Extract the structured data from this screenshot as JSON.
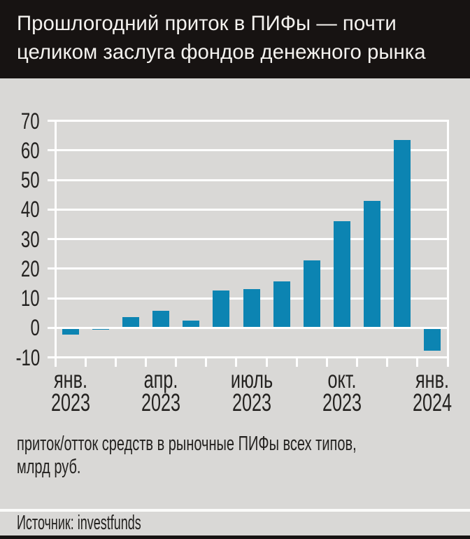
{
  "header": {
    "title_lines": [
      "Прошлогодний приток в ПИФы — почти",
      "целиком заслуга фондов денежного рынка"
    ]
  },
  "chart_data": {
    "type": "bar",
    "n_bars": 13,
    "values": [
      -2.4,
      -0.3,
      3.6,
      5.7,
      2.5,
      12.7,
      13.0,
      15.6,
      22.8,
      36.1,
      43.0,
      63.6,
      -7.8
    ],
    "x_tick_labels": [
      {
        "index": 0,
        "month": "янв.",
        "year": "2023"
      },
      {
        "index": 3,
        "month": "апр.",
        "year": "2023"
      },
      {
        "index": 6,
        "month": "июль",
        "year": "2023"
      },
      {
        "index": 9,
        "month": "окт.",
        "year": "2023"
      },
      {
        "index": 12,
        "month": "янв.",
        "year": "2024"
      }
    ],
    "y_ticks": [
      70,
      60,
      50,
      40,
      30,
      20,
      10,
      0,
      -10
    ],
    "ylim": [
      -10,
      70
    ],
    "grid": true,
    "legend": "none",
    "bar_color": "#0c84b2",
    "title": "",
    "xlabel": "",
    "ylabel": "млрд руб."
  },
  "footnote": {
    "lines": [
      "приток/отток средств в рыночные ПИФы всех типов,",
      "млрд руб."
    ]
  },
  "source": {
    "text": "Источник: investfunds"
  },
  "colors": {
    "header_bg": "#171312",
    "page_bg": "#d9d8d6",
    "bar": "#0c84b2",
    "grid": "#ffffff",
    "text_dark": "#242220",
    "title_text": "#f4f2ef"
  }
}
